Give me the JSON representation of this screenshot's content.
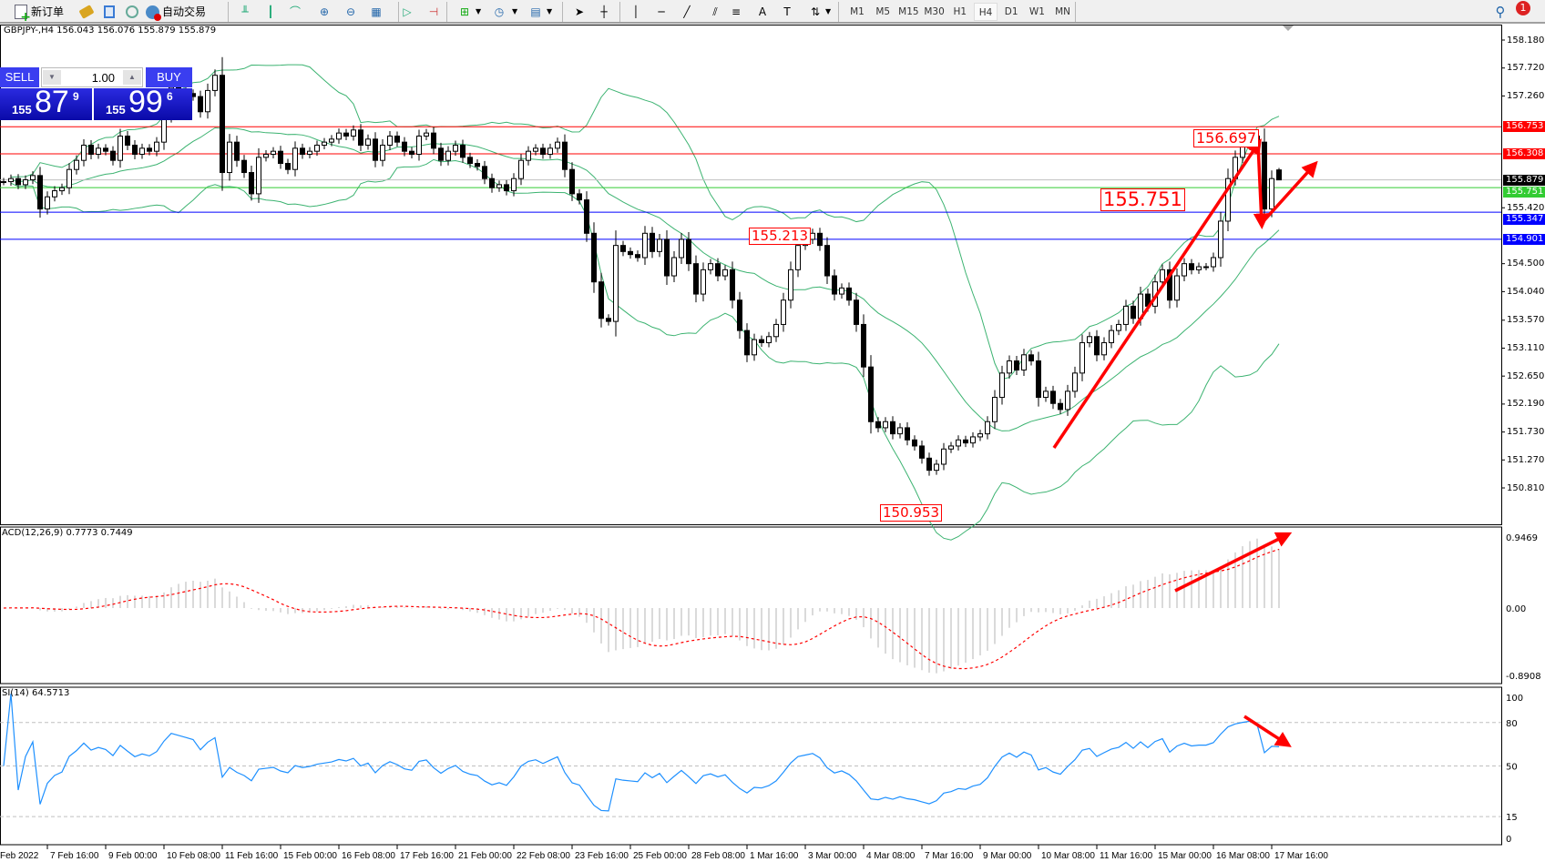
{
  "toolbar": {
    "new_order": "新订单",
    "auto_trading": "自动交易",
    "timeframes": [
      "M1",
      "M5",
      "M15",
      "M30",
      "H1",
      "H4",
      "D1",
      "W1",
      "MN"
    ],
    "active_timeframe": "H4",
    "notification_count": "1"
  },
  "chart": {
    "header": "GBPJPY-,H4  156.043 156.076 155.879 155.879"
  },
  "trade_panel": {
    "sell_label": "SELL",
    "buy_label": "BUY",
    "lot": "1.00",
    "sell": {
      "prefix": "155",
      "big": "87",
      "sup": "9"
    },
    "buy": {
      "prefix": "155",
      "big": "99",
      "sup": "6"
    }
  },
  "chart_data": {
    "type": "candlestick",
    "symbol": "GBPJPY-",
    "timeframe": "H4",
    "close": [
      155.85,
      155.9,
      155.8,
      155.88,
      155.95,
      155.4,
      155.6,
      155.7,
      155.75,
      156.05,
      156.2,
      156.45,
      156.3,
      156.4,
      156.35,
      156.2,
      156.6,
      156.45,
      156.3,
      156.4,
      156.35,
      156.5,
      156.95,
      157.4,
      157.35,
      157.3,
      157.25,
      157.0,
      157.35,
      157.6,
      156.0,
      156.5,
      156.2,
      156.0,
      155.65,
      156.25,
      156.3,
      156.35,
      156.15,
      156.05,
      156.4,
      156.3,
      156.35,
      156.45,
      156.5,
      156.55,
      156.65,
      156.6,
      156.7,
      156.45,
      156.55,
      156.2,
      156.45,
      156.6,
      156.5,
      156.35,
      156.3,
      156.6,
      156.65,
      156.4,
      156.2,
      156.35,
      156.45,
      156.25,
      156.15,
      156.1,
      155.9,
      155.75,
      155.8,
      155.7,
      155.9,
      156.2,
      156.35,
      156.4,
      156.3,
      156.4,
      156.5,
      156.05,
      155.65,
      155.55,
      155.0,
      154.2,
      153.6,
      153.55,
      154.8,
      154.7,
      154.65,
      154.6,
      155.0,
      154.7,
      154.9,
      154.3,
      154.6,
      154.9,
      154.5,
      154.0,
      154.4,
      154.5,
      154.3,
      154.4,
      153.9,
      153.4,
      153.0,
      153.25,
      153.2,
      153.3,
      153.5,
      153.9,
      154.4,
      154.8,
      154.9,
      155.0,
      154.8,
      154.3,
      154.0,
      154.1,
      153.9,
      153.5,
      152.8,
      151.9,
      151.8,
      151.9,
      151.7,
      151.8,
      151.6,
      151.5,
      151.3,
      151.1,
      151.2,
      151.45,
      151.5,
      151.6,
      151.55,
      151.65,
      151.7,
      151.9,
      152.3,
      152.7,
      152.9,
      152.75,
      153.0,
      152.9,
      152.3,
      152.4,
      152.2,
      152.1,
      152.4,
      152.7,
      153.2,
      153.3,
      153.0,
      153.2,
      153.4,
      153.5,
      153.8,
      153.6,
      154.0,
      153.8,
      154.2,
      154.4,
      153.9,
      154.3,
      154.5,
      154.4,
      154.45,
      154.45,
      154.6,
      155.2,
      155.9,
      156.25,
      156.45,
      156.6,
      156.5,
      155.4,
      155.9,
      155.879
    ],
    "last_bar": {
      "open": 156.043,
      "high": 156.076,
      "low": 155.879,
      "close": 155.879
    },
    "price_axis": {
      "range": [
        150.81,
        158.18
      ],
      "ticks": [
        "158.180",
        "157.720",
        "157.260",
        "155.420",
        "154.500",
        "154.040",
        "153.570",
        "153.110",
        "152.650",
        "152.190",
        "151.730",
        "151.270",
        "150.810"
      ]
    },
    "price_lines": [
      {
        "value": "156.753",
        "color": "#ff0000"
      },
      {
        "value": "156.308",
        "color": "#ff0000"
      },
      {
        "value": "155.879",
        "color": "#000000",
        "line_color": "#c0c0c0"
      },
      {
        "value": "155.751",
        "color": "#33cc33"
      },
      {
        "value": "155.347",
        "color": "#0000ff"
      },
      {
        "value": "154.901",
        "color": "#0000ff"
      }
    ],
    "annotations": [
      "156.697",
      "155.751",
      "155.213",
      "150.953"
    ],
    "bollinger_color": "#3cb371",
    "time_labels": [
      "Feb 2022",
      "7 Feb 16:00",
      "9 Feb 00:00",
      "10 Feb 08:00",
      "11 Feb 16:00",
      "15 Feb 00:00",
      "16 Feb 08:00",
      "17 Feb 16:00",
      "21 Feb 00:00",
      "22 Feb 08:00",
      "23 Feb 16:00",
      "25 Feb 00:00",
      "28 Feb 08:00",
      "1 Mar 16:00",
      "3 Mar 00:00",
      "4 Mar 08:00",
      "7 Mar 16:00",
      "9 Mar 00:00",
      "10 Mar 08:00",
      "11 Mar 16:00",
      "15 Mar 00:00",
      "16 Mar 08:00",
      "17 Mar 16:00"
    ],
    "macd": {
      "label": "ACD(12,26,9) 0.7773 0.7449",
      "value": 0.7773,
      "signal": 0.7449,
      "ticks": [
        "0.9469",
        "0.00",
        "-0.8908"
      ],
      "range": [
        -0.8908,
        0.9469
      ]
    },
    "rsi": {
      "label": "SI(14) 64.5713",
      "value": 64.5713,
      "ticks": [
        "100",
        "80",
        "50",
        "15",
        "0"
      ],
      "levels": [
        80,
        50,
        15
      ]
    }
  }
}
